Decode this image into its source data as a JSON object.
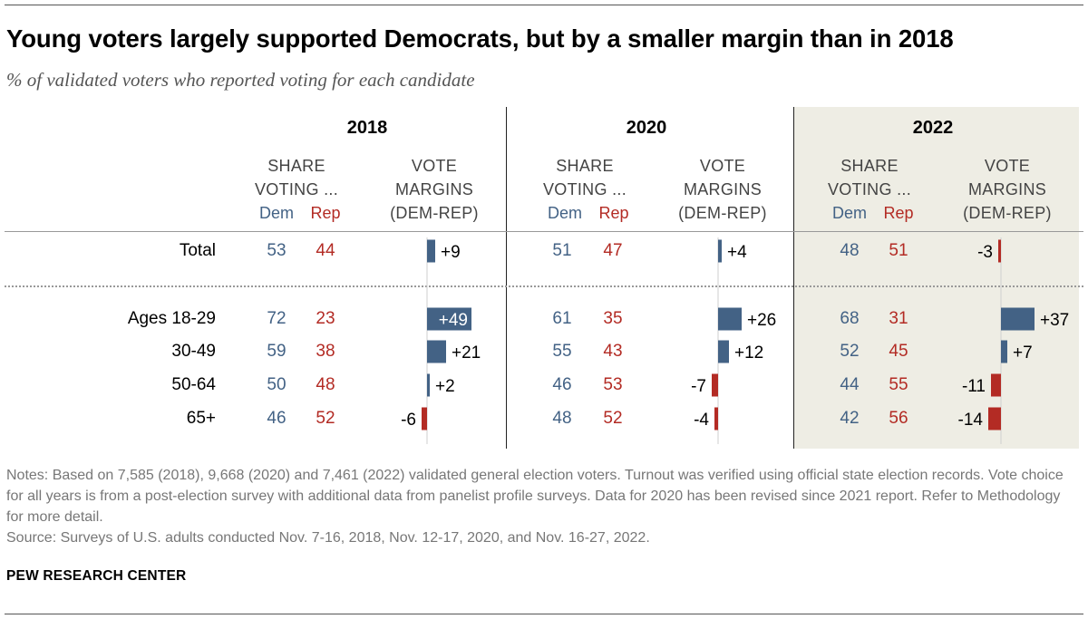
{
  "title": "Young voters largely supported Democrats, but by a smaller margin than in 2018",
  "subtitle": "% of validated voters who reported voting for each candidate",
  "headers": {
    "share_line1": "SHARE",
    "share_line2": "VOTING ...",
    "dem": "Dem",
    "rep": "Rep",
    "margin_line1": "VOTE",
    "margin_line2": "MARGINS",
    "margin_line3": "(DEM-REP)"
  },
  "colors": {
    "dem": "#436285",
    "rep": "#b32b24",
    "highlight_bg": "#eeede4"
  },
  "chart_data": {
    "type": "table",
    "years": [
      "2018",
      "2020",
      "2022"
    ],
    "rows": [
      {
        "label": "Total",
        "values": [
          {
            "dem": 53,
            "rep": 44,
            "margin": "+9"
          },
          {
            "dem": 51,
            "rep": 47,
            "margin": "+4"
          },
          {
            "dem": 48,
            "rep": 51,
            "margin": "-3"
          }
        ]
      },
      {
        "label": "Ages 18-29",
        "values": [
          {
            "dem": 72,
            "rep": 23,
            "margin": "+49"
          },
          {
            "dem": 61,
            "rep": 35,
            "margin": "+26"
          },
          {
            "dem": 68,
            "rep": 31,
            "margin": "+37"
          }
        ]
      },
      {
        "label": "30-49",
        "values": [
          {
            "dem": 59,
            "rep": 38,
            "margin": "+21"
          },
          {
            "dem": 55,
            "rep": 43,
            "margin": "+12"
          },
          {
            "dem": 52,
            "rep": 45,
            "margin": "+7"
          }
        ]
      },
      {
        "label": "50-64",
        "values": [
          {
            "dem": 50,
            "rep": 48,
            "margin": "+2"
          },
          {
            "dem": 46,
            "rep": 53,
            "margin": "-7"
          },
          {
            "dem": 44,
            "rep": 55,
            "margin": "-11"
          }
        ]
      },
      {
        "label": "65+",
        "values": [
          {
            "dem": 46,
            "rep": 52,
            "margin": "-6"
          },
          {
            "dem": 48,
            "rep": 52,
            "margin": "-4"
          },
          {
            "dem": 42,
            "rep": 56,
            "margin": "-14"
          }
        ]
      }
    ],
    "highlighted_year": "2022"
  },
  "notes": {
    "notes_text": "Notes: Based on 7,585 (2018), 9,668 (2020) and 7,461 (2022) validated general election voters. Turnout was verified using official state election records. Vote choice for all years is from a post-election survey with additional data from panelist profile surveys. Data for 2020 has been revised since 2021 report. Refer to Methodology for more detail.",
    "source_text": "Source: Surveys of U.S. adults conducted Nov. 7-16, 2018, Nov. 12-17, 2020, and Nov. 16-27, 2022."
  },
  "brand": "PEW RESEARCH CENTER"
}
